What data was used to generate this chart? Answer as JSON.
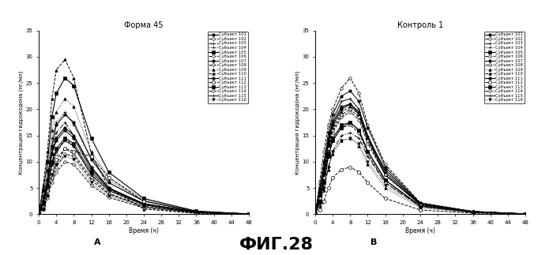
{
  "title_left": "Форма 45",
  "title_right": "Контроль 1",
  "xlabel": "Время (ч)",
  "ylabel": "Концентрация гидрокодона (нг/мл)",
  "label_a": "А",
  "label_b": "В",
  "fig_title": "ФИГ.28",
  "xlim": [
    0,
    48
  ],
  "ylim_left": [
    0,
    35
  ],
  "ylim_right": [
    0,
    35
  ],
  "xticks": [
    0,
    4,
    8,
    12,
    16,
    20,
    24,
    28,
    32,
    36,
    40,
    44,
    48
  ],
  "yticks": [
    0,
    5,
    10,
    15,
    20,
    25,
    30,
    35
  ],
  "subjects": [
    "Субъект 101",
    "Субъект 102",
    "Субъект 103",
    "Субъект 104",
    "Субъект 105",
    "Субъект 106",
    "Субъект 107",
    "Субъект 108",
    "Субъект 109",
    "Субъект 110",
    "Субъект 111",
    "Субъект 112",
    "Субъект 113",
    "Субъект 114",
    "Субъект 115",
    "Субъект 116"
  ],
  "subjects_right": [
    "Субъект 101",
    "Субъект 102",
    "Субъект 103",
    "Субъект 104",
    "Субъект 105",
    "Субъект 106",
    "Субъект 107",
    "Субъект 108",
    "Субъект 109",
    "Субъект 110",
    "Субъект 111",
    "Субъект 112",
    "Субъект 113",
    "Субъект 114",
    "Субъект 115",
    "Субъект 116"
  ],
  "time_left": [
    0,
    1,
    2,
    3,
    4,
    6,
    8,
    12,
    16,
    24,
    36,
    48
  ],
  "time_right": [
    0,
    1,
    2,
    3,
    4,
    6,
    8,
    10,
    12,
    16,
    24,
    36,
    48
  ],
  "data_left": [
    [
      0,
      2.5,
      6.5,
      13.0,
      17.0,
      19.0,
      17.5,
      10.5,
      6.0,
      2.5,
      0.5,
      0.05
    ],
    [
      0,
      1.0,
      3.5,
      7.5,
      9.5,
      12.5,
      11.5,
      7.0,
      4.0,
      1.5,
      0.3,
      0.03
    ],
    [
      0,
      2.0,
      6.5,
      12.5,
      15.5,
      17.5,
      15.0,
      9.0,
      5.0,
      2.0,
      0.4,
      0.04
    ],
    [
      0,
      3.0,
      8.0,
      14.5,
      17.5,
      19.5,
      17.0,
      10.5,
      6.5,
      2.5,
      0.5,
      0.05
    ],
    [
      0,
      4.5,
      10.0,
      18.5,
      23.0,
      26.0,
      24.5,
      14.5,
      8.0,
      3.0,
      0.6,
      0.06
    ],
    [
      0,
      1.5,
      5.0,
      9.5,
      11.5,
      14.5,
      13.0,
      7.5,
      4.5,
      1.8,
      0.35,
      0.04
    ],
    [
      0,
      2.5,
      6.5,
      11.5,
      14.0,
      16.0,
      14.5,
      8.5,
      5.0,
      2.0,
      0.4,
      0.04
    ],
    [
      0,
      1.0,
      3.5,
      7.0,
      9.0,
      11.5,
      11.0,
      6.5,
      3.8,
      1.5,
      0.3,
      0.03
    ],
    [
      0,
      3.5,
      8.5,
      16.0,
      19.5,
      22.0,
      20.5,
      12.0,
      7.0,
      2.8,
      0.55,
      0.06
    ],
    [
      0,
      5.5,
      12.0,
      22.0,
      27.5,
      29.5,
      26.0,
      11.5,
      5.0,
      1.0,
      0.15,
      0.02
    ],
    [
      0,
      2.5,
      6.5,
      11.5,
      14.5,
      16.5,
      15.0,
      9.0,
      5.0,
      2.0,
      0.4,
      0.04
    ],
    [
      0,
      1.5,
      4.5,
      9.0,
      10.5,
      12.5,
      12.0,
      11.0,
      7.0,
      2.5,
      0.5,
      0.05
    ],
    [
      0,
      2.0,
      5.5,
      10.0,
      12.5,
      14.5,
      13.5,
      8.0,
      4.8,
      1.9,
      0.38,
      0.04
    ],
    [
      0,
      1.0,
      3.0,
      6.0,
      8.0,
      10.0,
      9.5,
      5.5,
      3.2,
      1.2,
      0.25,
      0.02
    ],
    [
      0,
      2.0,
      5.0,
      9.5,
      12.0,
      14.0,
      13.0,
      7.5,
      4.5,
      1.8,
      0.35,
      0.03
    ],
    [
      0,
      1.0,
      3.5,
      7.5,
      9.5,
      11.0,
      10.5,
      6.0,
      3.5,
      1.4,
      0.28,
      0.03
    ]
  ],
  "data_right": [
    [
      0,
      4.5,
      9.0,
      14.0,
      17.5,
      20.5,
      21.0,
      19.0,
      14.5,
      8.5,
      2.0,
      0.5,
      0.05
    ],
    [
      0,
      3.5,
      7.5,
      12.0,
      15.5,
      18.5,
      19.5,
      18.0,
      13.5,
      7.5,
      1.8,
      0.45,
      0.05
    ],
    [
      0,
      2.0,
      5.0,
      9.0,
      12.0,
      15.0,
      15.5,
      14.5,
      11.0,
      6.0,
      1.5,
      0.38,
      0.04
    ],
    [
      0,
      3.0,
      7.5,
      13.0,
      17.0,
      20.0,
      21.0,
      19.5,
      15.0,
      8.0,
      2.0,
      0.5,
      0.05
    ],
    [
      0,
      2.5,
      6.0,
      11.5,
      14.5,
      17.0,
      17.5,
      16.0,
      12.0,
      6.5,
      1.6,
      0.4,
      0.04
    ],
    [
      0,
      6.0,
      12.0,
      17.0,
      20.0,
      24.0,
      26.0,
      23.0,
      17.0,
      9.5,
      2.2,
      0.55,
      0.06
    ],
    [
      0,
      5.0,
      10.0,
      15.5,
      19.0,
      22.5,
      23.5,
      21.5,
      16.5,
      9.0,
      2.1,
      0.52,
      0.06
    ],
    [
      0,
      2.5,
      6.0,
      11.0,
      14.0,
      16.5,
      17.0,
      15.5,
      11.5,
      6.0,
      1.5,
      0.38,
      0.04
    ],
    [
      0,
      1.5,
      4.5,
      8.5,
      11.5,
      14.0,
      14.5,
      13.0,
      9.5,
      5.0,
      1.2,
      0.3,
      0.03
    ],
    [
      0,
      3.0,
      7.0,
      13.0,
      16.5,
      19.5,
      20.5,
      19.0,
      14.5,
      7.5,
      1.9,
      0.47,
      0.05
    ],
    [
      0,
      3.5,
      8.0,
      13.5,
      17.0,
      20.0,
      21.0,
      19.5,
      14.5,
      7.5,
      1.9,
      0.47,
      0.05
    ],
    [
      0,
      0.8,
      2.5,
      5.0,
      7.0,
      8.5,
      9.0,
      8.0,
      6.0,
      3.0,
      0.8,
      0.2,
      0.02
    ],
    [
      0,
      2.5,
      6.0,
      11.0,
      14.0,
      16.5,
      17.5,
      16.0,
      12.0,
      6.5,
      1.6,
      0.4,
      0.04
    ],
    [
      0,
      3.0,
      7.0,
      12.5,
      16.0,
      19.0,
      20.0,
      18.5,
      14.0,
      7.5,
      1.85,
      0.46,
      0.05
    ],
    [
      0,
      4.0,
      8.5,
      14.5,
      18.0,
      21.5,
      22.0,
      20.0,
      15.0,
      8.0,
      2.0,
      0.5,
      0.05
    ],
    [
      0,
      2.0,
      5.0,
      9.0,
      12.0,
      14.0,
      14.5,
      13.5,
      10.0,
      5.5,
      1.35,
      0.34,
      0.04
    ]
  ]
}
